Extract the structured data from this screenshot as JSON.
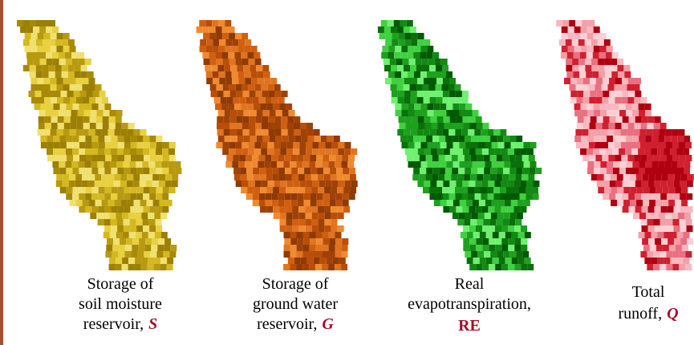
{
  "panels": [
    {
      "lines": [
        {
          "text": "Storage of"
        },
        {
          "text": "soil moisture"
        },
        {
          "text": "reservoir,",
          "symbol": "S"
        }
      ]
    },
    {
      "lines": [
        {
          "text": "Storage of"
        },
        {
          "text": "ground water"
        },
        {
          "text": "reservoir,",
          "symbol": "G"
        }
      ]
    },
    {
      "lines": [
        {
          "text": "Real"
        },
        {
          "text": "evapotranspiration,"
        },
        {
          "symbol": "RE"
        }
      ]
    },
    {
      "lines": [
        {
          "text": "Total"
        },
        {
          "text": "runoff,",
          "symbol": "Q"
        }
      ]
    }
  ]
}
